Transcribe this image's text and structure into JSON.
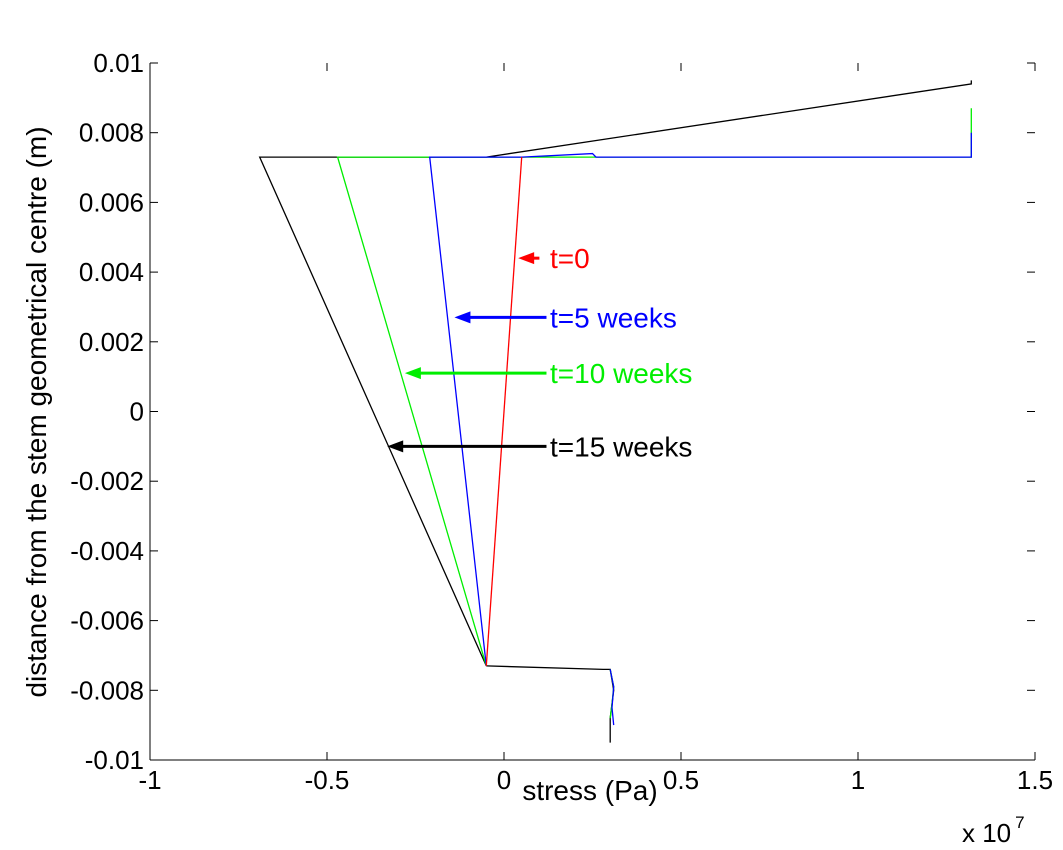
{
  "chart_data": {
    "type": "line",
    "title": "",
    "xlabel": "stress (Pa)",
    "ylabel": "distance from the stem geometrical centre (m)",
    "x_multiplier_text": "x 10",
    "x_multiplier_exponent": "7",
    "xlim": [
      -1,
      1.5
    ],
    "ylim": [
      -0.01,
      0.01
    ],
    "x_ticks": [
      -1,
      -0.5,
      0,
      0.5,
      1,
      1.5
    ],
    "x_tick_labels": [
      "-1",
      "-0.5",
      "0",
      "0.5",
      "1",
      "1.5"
    ],
    "y_ticks": [
      -0.01,
      -0.008,
      -0.006,
      -0.004,
      -0.002,
      0,
      0.002,
      0.004,
      0.006,
      0.008,
      0.01
    ],
    "y_tick_labels": [
      "-0.01",
      "-0.008",
      "-0.006",
      "-0.004",
      "-0.002",
      "0",
      "0.002",
      "0.004",
      "0.006",
      "0.008",
      "0.01"
    ],
    "grid": false,
    "series": [
      {
        "name": "t=0",
        "color": "#ff0000",
        "points": [
          [
            -0.05,
            -0.0073
          ],
          [
            0.05,
            0.0073
          ]
        ]
      },
      {
        "name": "t=5 weeks",
        "color": "#0000ff",
        "points": [
          [
            -0.05,
            -0.0073
          ],
          [
            -0.21,
            0.0073
          ],
          [
            0.05,
            0.0073
          ],
          [
            0.25,
            0.0074
          ],
          [
            0.26,
            0.0073
          ],
          [
            1.32,
            0.0073
          ],
          [
            1.32,
            0.008
          ]
        ],
        "extra_lines": [
          [
            [
              0.3,
              -0.0074
            ],
            [
              0.31,
              -0.0079
            ],
            [
              0.305,
              -0.0085
            ],
            [
              0.31,
              -0.009
            ]
          ]
        ]
      },
      {
        "name": "t=10 weeks",
        "color": "#00ee00",
        "points": [
          [
            -0.05,
            -0.0073
          ],
          [
            -0.47,
            0.0073
          ],
          [
            0.4,
            0.0073
          ],
          [
            1.32,
            0.0073
          ],
          [
            1.32,
            0.0087
          ]
        ],
        "extra_lines": [
          [
            [
              0.3,
              -0.0074
            ],
            [
              0.31,
              -0.0079
            ],
            [
              0.305,
              -0.0084
            ],
            [
              0.3,
              -0.0088
            ]
          ]
        ]
      },
      {
        "name": "t=15 weeks",
        "color": "#000000",
        "points": [
          [
            -0.05,
            -0.0073
          ],
          [
            -0.69,
            0.0073
          ],
          [
            -0.05,
            0.0073
          ],
          [
            1.32,
            0.0094
          ],
          [
            1.32,
            0.0095
          ]
        ],
        "extra_lines": [
          [
            [
              -0.05,
              -0.0073
            ],
            [
              0.28,
              -0.0074
            ],
            [
              0.3,
              -0.0074
            ],
            [
              0.31,
              -0.008
            ],
            [
              0.3,
              -0.0088
            ],
            [
              0.3,
              -0.0095
            ]
          ]
        ]
      }
    ],
    "annotations": [
      {
        "text": "t=0",
        "color": "#ff0000",
        "text_x": 0.13,
        "text_y": 0.0044,
        "arrow_from": [
          0.1,
          0.0044
        ],
        "arrow_to": [
          0.04,
          0.0044
        ]
      },
      {
        "text": "t=5 weeks",
        "color": "#0000ff",
        "text_x": 0.13,
        "text_y": 0.0027,
        "arrow_from": [
          0.12,
          0.0027
        ],
        "arrow_to": [
          -0.14,
          0.0027
        ]
      },
      {
        "text": "t=10 weeks",
        "color": "#00ee00",
        "text_x": 0.13,
        "text_y": 0.0011,
        "arrow_from": [
          0.12,
          0.0011
        ],
        "arrow_to": [
          -0.28,
          0.0011
        ]
      },
      {
        "text": "t=15 weeks",
        "color": "#000000",
        "text_x": 0.13,
        "text_y": -0.001,
        "arrow_from": [
          0.12,
          -0.001
        ],
        "arrow_to": [
          -0.33,
          -0.001
        ]
      }
    ]
  }
}
